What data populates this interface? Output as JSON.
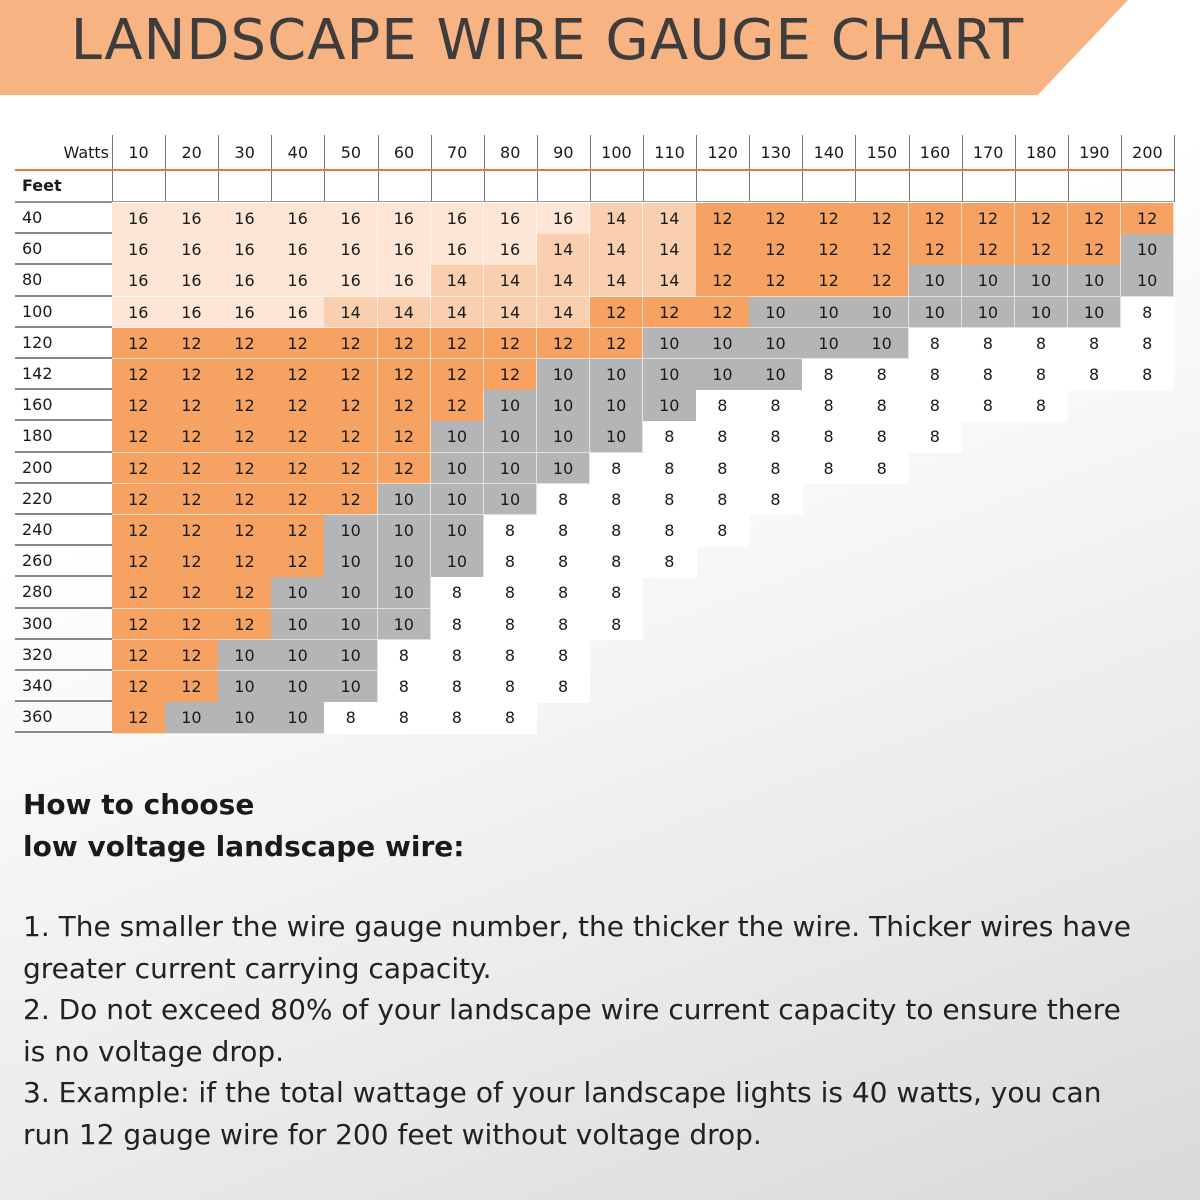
{
  "title": "LANDSCAPE WIRE GAUGE CHART",
  "colors": {
    "banner": "#f8b382",
    "gauge_16": "#fde6d6",
    "gauge_14": "#f9cfb0",
    "gauge_12": "#f5a263",
    "gauge_10": "#b4b5b7",
    "gauge_8": "#ffffff",
    "header_rule": "#e07a3c"
  },
  "chart_data": {
    "type": "table",
    "title": "LANDSCAPE WIRE GAUGE CHART",
    "column_header": "Watts",
    "row_header": "Feet",
    "columns": [
      10,
      20,
      30,
      40,
      50,
      60,
      70,
      80,
      90,
      100,
      110,
      120,
      130,
      140,
      150,
      160,
      170,
      180,
      190,
      200
    ],
    "rows": [
      {
        "feet": 40,
        "gauges": [
          16,
          16,
          16,
          16,
          16,
          16,
          16,
          16,
          16,
          14,
          14,
          12,
          12,
          12,
          12,
          12,
          12,
          12,
          12,
          12
        ]
      },
      {
        "feet": 60,
        "gauges": [
          16,
          16,
          16,
          16,
          16,
          16,
          16,
          16,
          14,
          14,
          14,
          12,
          12,
          12,
          12,
          12,
          12,
          12,
          12,
          10
        ]
      },
      {
        "feet": 80,
        "gauges": [
          16,
          16,
          16,
          16,
          16,
          16,
          14,
          14,
          14,
          14,
          14,
          12,
          12,
          12,
          12,
          10,
          10,
          10,
          10,
          10
        ]
      },
      {
        "feet": 100,
        "gauges": [
          16,
          16,
          16,
          16,
          14,
          14,
          14,
          14,
          14,
          12,
          12,
          12,
          10,
          10,
          10,
          10,
          10,
          10,
          10,
          8
        ]
      },
      {
        "feet": 120,
        "gauges": [
          12,
          12,
          12,
          12,
          12,
          12,
          12,
          12,
          12,
          12,
          10,
          10,
          10,
          10,
          10,
          8,
          8,
          8,
          8,
          8
        ]
      },
      {
        "feet": 142,
        "gauges": [
          12,
          12,
          12,
          12,
          12,
          12,
          12,
          12,
          10,
          10,
          10,
          10,
          10,
          8,
          8,
          8,
          8,
          8,
          8,
          8
        ]
      },
      {
        "feet": 160,
        "gauges": [
          12,
          12,
          12,
          12,
          12,
          12,
          12,
          10,
          10,
          10,
          10,
          8,
          8,
          8,
          8,
          8,
          8,
          8,
          null,
          null
        ]
      },
      {
        "feet": 180,
        "gauges": [
          12,
          12,
          12,
          12,
          12,
          12,
          10,
          10,
          10,
          10,
          8,
          8,
          8,
          8,
          8,
          8,
          null,
          null,
          null,
          null
        ]
      },
      {
        "feet": 200,
        "gauges": [
          12,
          12,
          12,
          12,
          12,
          12,
          10,
          10,
          10,
          8,
          8,
          8,
          8,
          8,
          8,
          null,
          null,
          null,
          null,
          null
        ]
      },
      {
        "feet": 220,
        "gauges": [
          12,
          12,
          12,
          12,
          12,
          10,
          10,
          10,
          8,
          8,
          8,
          8,
          8,
          null,
          null,
          null,
          null,
          null,
          null,
          null
        ]
      },
      {
        "feet": 240,
        "gauges": [
          12,
          12,
          12,
          12,
          10,
          10,
          10,
          8,
          8,
          8,
          8,
          8,
          null,
          null,
          null,
          null,
          null,
          null,
          null,
          null
        ]
      },
      {
        "feet": 260,
        "gauges": [
          12,
          12,
          12,
          12,
          10,
          10,
          10,
          8,
          8,
          8,
          8,
          null,
          null,
          null,
          null,
          null,
          null,
          null,
          null,
          null
        ]
      },
      {
        "feet": 280,
        "gauges": [
          12,
          12,
          12,
          10,
          10,
          10,
          8,
          8,
          8,
          8,
          null,
          null,
          null,
          null,
          null,
          null,
          null,
          null,
          null,
          null
        ]
      },
      {
        "feet": 300,
        "gauges": [
          12,
          12,
          12,
          10,
          10,
          10,
          8,
          8,
          8,
          8,
          null,
          null,
          null,
          null,
          null,
          null,
          null,
          null,
          null,
          null
        ]
      },
      {
        "feet": 320,
        "gauges": [
          12,
          12,
          10,
          10,
          10,
          8,
          8,
          8,
          8,
          null,
          null,
          null,
          null,
          null,
          null,
          null,
          null,
          null,
          null,
          null
        ]
      },
      {
        "feet": 340,
        "gauges": [
          12,
          12,
          10,
          10,
          10,
          8,
          8,
          8,
          8,
          null,
          null,
          null,
          null,
          null,
          null,
          null,
          null,
          null,
          null,
          null
        ]
      },
      {
        "feet": 360,
        "gauges": [
          12,
          10,
          10,
          10,
          8,
          8,
          8,
          8,
          null,
          null,
          null,
          null,
          null,
          null,
          null,
          null,
          null,
          null,
          null,
          null
        ]
      }
    ]
  },
  "guide": {
    "heading_line1": "How to choose",
    "heading_line2": "low voltage landscape wire:",
    "tips": [
      "1. The smaller the wire gauge number, the thicker the wire. Thicker wires have greater current carrying capacity.",
      "2. Do not exceed 80% of your landscape wire current capacity to ensure there is no voltage drop.",
      "3. Example: if the total wattage of your landscape lights is 40 watts, you can run 12 gauge wire for 200 feet without voltage drop."
    ]
  }
}
